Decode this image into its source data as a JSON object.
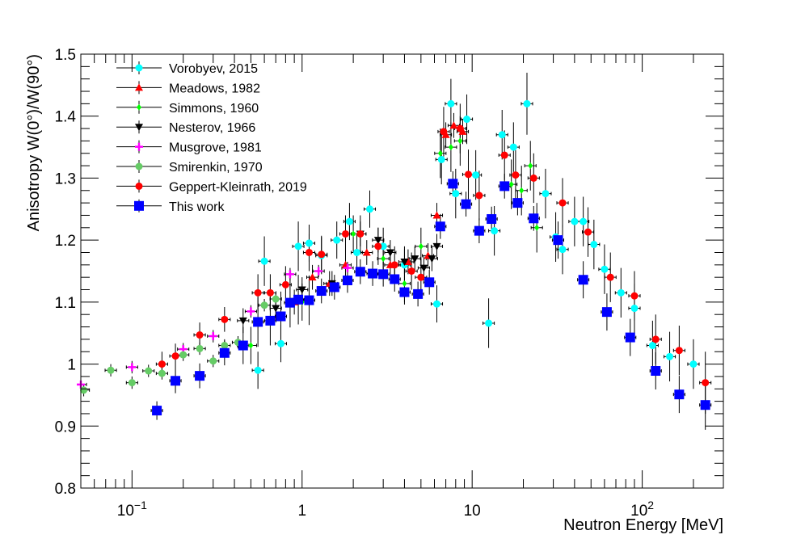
{
  "chart_data": {
    "type": "scatter",
    "title": "",
    "xlabel": "Neutron Energy [MeV]",
    "ylabel": "Anisotropy W(0°)/W(90°)",
    "xscale": "log",
    "xlim": [
      0.05,
      300
    ],
    "ylim": [
      0.8,
      1.5
    ],
    "grid": false,
    "legend_position": "top-left",
    "x_tick_labels": [
      {
        "value": 0.1,
        "base": "10",
        "exp": "−1"
      },
      {
        "value": 1,
        "base": "1",
        "exp": ""
      },
      {
        "value": 10,
        "base": "10",
        "exp": ""
      },
      {
        "value": 100,
        "base": "10",
        "exp": "2"
      }
    ],
    "y_ticks": [
      0.8,
      0.9,
      1.0,
      1.1,
      1.2,
      1.3,
      1.4,
      1.5
    ],
    "y_tick_labels": [
      "0.8",
      "0.9",
      "1",
      "1.1",
      "1.2",
      "1.3",
      "1.4",
      "1.5"
    ],
    "series": [
      {
        "name": "Vorobyev, 2015",
        "color": "#00ffff",
        "marker": "circle",
        "points": [
          {
            "x": 0.55,
            "y": 0.99,
            "err": 0.03
          },
          {
            "x": 0.6,
            "y": 1.166,
            "err": 0.04
          },
          {
            "x": 0.75,
            "y": 1.033,
            "err": 0.03
          },
          {
            "x": 0.95,
            "y": 1.19,
            "err": 0.04
          },
          {
            "x": 1.1,
            "y": 1.195,
            "err": 0.03
          },
          {
            "x": 1.3,
            "y": 1.175,
            "err": 0.03
          },
          {
            "x": 1.6,
            "y": 1.2,
            "err": 0.03
          },
          {
            "x": 1.9,
            "y": 1.23,
            "err": 0.03
          },
          {
            "x": 2.1,
            "y": 1.18,
            "err": 0.03
          },
          {
            "x": 2.5,
            "y": 1.25,
            "err": 0.03
          },
          {
            "x": 3.0,
            "y": 1.19,
            "err": 0.03
          },
          {
            "x": 4.0,
            "y": 1.16,
            "err": 0.03
          },
          {
            "x": 6.2,
            "y": 1.097,
            "err": 0.03
          },
          {
            "x": 6.6,
            "y": 1.33,
            "err": 0.04
          },
          {
            "x": 7.5,
            "y": 1.42,
            "err": 0.04
          },
          {
            "x": 8.0,
            "y": 1.275,
            "err": 0.04
          },
          {
            "x": 9.3,
            "y": 1.395,
            "err": 0.04
          },
          {
            "x": 10.5,
            "y": 1.305,
            "err": 0.04
          },
          {
            "x": 12.5,
            "y": 1.066,
            "err": 0.04
          },
          {
            "x": 13.5,
            "y": 1.215,
            "err": 0.04
          },
          {
            "x": 15.0,
            "y": 1.37,
            "err": 0.04
          },
          {
            "x": 17.5,
            "y": 1.35,
            "err": 0.04
          },
          {
            "x": 21.0,
            "y": 1.42,
            "err": 0.05
          },
          {
            "x": 27.0,
            "y": 1.275,
            "err": 0.04
          },
          {
            "x": 31.0,
            "y": 1.205,
            "err": 0.04
          },
          {
            "x": 34.0,
            "y": 1.185,
            "err": 0.04
          },
          {
            "x": 40.0,
            "y": 1.23,
            "err": 0.04
          },
          {
            "x": 45.0,
            "y": 1.23,
            "err": 0.04
          },
          {
            "x": 52.0,
            "y": 1.193,
            "err": 0.04
          },
          {
            "x": 60.0,
            "y": 1.153,
            "err": 0.04
          },
          {
            "x": 75.0,
            "y": 1.115,
            "err": 0.04
          },
          {
            "x": 90.0,
            "y": 1.09,
            "err": 0.04
          },
          {
            "x": 115.0,
            "y": 1.03,
            "err": 0.04
          },
          {
            "x": 145.0,
            "y": 1.012,
            "err": 0.04
          },
          {
            "x": 200.0,
            "y": 1.0,
            "err": 0.04
          }
        ]
      },
      {
        "name": "Meadows, 1982",
        "color": "#ff0000",
        "marker": "triangle-up",
        "points": [
          {
            "x": 0.9,
            "y": 1.1,
            "err": 0.02
          },
          {
            "x": 1.15,
            "y": 1.14,
            "err": 0.02
          },
          {
            "x": 1.45,
            "y": 1.13,
            "err": 0.02
          },
          {
            "x": 1.8,
            "y": 1.16,
            "err": 0.02
          },
          {
            "x": 2.4,
            "y": 1.18,
            "err": 0.02
          },
          {
            "x": 3.3,
            "y": 1.16,
            "err": 0.02
          },
          {
            "x": 4.2,
            "y": 1.165,
            "err": 0.02
          },
          {
            "x": 5.5,
            "y": 1.175,
            "err": 0.02
          },
          {
            "x": 6.2,
            "y": 1.24,
            "err": 0.02
          },
          {
            "x": 7.0,
            "y": 1.37,
            "err": 0.02
          },
          {
            "x": 7.8,
            "y": 1.385,
            "err": 0.02
          },
          {
            "x": 8.8,
            "y": 1.375,
            "err": 0.02
          }
        ]
      },
      {
        "name": "Simmons, 1960",
        "color": "#00ff00",
        "marker": "diamond",
        "points": [
          {
            "x": 0.5,
            "y": 1.03,
            "err": 0.03
          },
          {
            "x": 1.0,
            "y": 1.1,
            "err": 0.03
          },
          {
            "x": 2.0,
            "y": 1.21,
            "err": 0.03
          },
          {
            "x": 3.0,
            "y": 1.17,
            "err": 0.03
          },
          {
            "x": 4.0,
            "y": 1.13,
            "err": 0.03
          },
          {
            "x": 5.0,
            "y": 1.19,
            "err": 0.03
          },
          {
            "x": 6.5,
            "y": 1.34,
            "err": 0.04
          },
          {
            "x": 7.5,
            "y": 1.35,
            "err": 0.04
          },
          {
            "x": 8.5,
            "y": 1.36,
            "err": 0.04
          },
          {
            "x": 17.0,
            "y": 1.29,
            "err": 0.04
          },
          {
            "x": 19.5,
            "y": 1.28,
            "err": 0.04
          },
          {
            "x": 22.0,
            "y": 1.32,
            "err": 0.04
          },
          {
            "x": 24.0,
            "y": 1.22,
            "err": 0.04
          }
        ]
      },
      {
        "name": "Nesterov, 1966",
        "color": "#000000",
        "marker": "triangle-down",
        "points": [
          {
            "x": 0.45,
            "y": 1.07,
            "err": 0.02
          },
          {
            "x": 0.7,
            "y": 1.09,
            "err": 0.02
          },
          {
            "x": 1.0,
            "y": 1.12,
            "err": 0.02
          },
          {
            "x": 1.5,
            "y": 1.13,
            "err": 0.02
          },
          {
            "x": 2.2,
            "y": 1.21,
            "err": 0.02
          },
          {
            "x": 2.8,
            "y": 1.2,
            "err": 0.02
          },
          {
            "x": 3.3,
            "y": 1.18,
            "err": 0.02
          },
          {
            "x": 4.0,
            "y": 1.165,
            "err": 0.02
          },
          {
            "x": 4.6,
            "y": 1.17,
            "err": 0.02
          },
          {
            "x": 5.2,
            "y": 1.155,
            "err": 0.02
          },
          {
            "x": 5.8,
            "y": 1.17,
            "err": 0.02
          },
          {
            "x": 6.2,
            "y": 1.19,
            "err": 0.02
          }
        ]
      },
      {
        "name": "Musgrove, 1981",
        "color": "#ff00ff",
        "marker": "cross",
        "points": [
          {
            "x": 0.05,
            "y": 0.967,
            "err": 0.01
          },
          {
            "x": 0.1,
            "y": 0.995,
            "err": 0.01
          },
          {
            "x": 0.2,
            "y": 1.024,
            "err": 0.01
          },
          {
            "x": 0.3,
            "y": 1.045,
            "err": 0.01
          },
          {
            "x": 0.5,
            "y": 1.085,
            "err": 0.01
          },
          {
            "x": 0.85,
            "y": 1.145,
            "err": 0.01
          },
          {
            "x": 1.25,
            "y": 1.15,
            "err": 0.01
          },
          {
            "x": 1.85,
            "y": 1.155,
            "err": 0.01
          }
        ]
      },
      {
        "name": "Smirenkin, 1970",
        "color": "#66cc66",
        "marker": "circle",
        "points": [
          {
            "x": 0.052,
            "y": 0.958,
            "err": 0.01
          },
          {
            "x": 0.075,
            "y": 0.99,
            "err": 0.01
          },
          {
            "x": 0.1,
            "y": 0.97,
            "err": 0.01
          },
          {
            "x": 0.125,
            "y": 0.989,
            "err": 0.01
          },
          {
            "x": 0.15,
            "y": 0.985,
            "err": 0.01
          },
          {
            "x": 0.2,
            "y": 1.015,
            "err": 0.01
          },
          {
            "x": 0.25,
            "y": 1.025,
            "err": 0.01
          },
          {
            "x": 0.3,
            "y": 1.005,
            "err": 0.01
          },
          {
            "x": 0.35,
            "y": 1.03,
            "err": 0.01
          },
          {
            "x": 0.42,
            "y": 1.035,
            "err": 0.01
          },
          {
            "x": 0.6,
            "y": 1.095,
            "err": 0.01
          },
          {
            "x": 0.7,
            "y": 1.105,
            "err": 0.01
          }
        ]
      },
      {
        "name": "Geppert-Kleinrath, 2019",
        "color": "#ff0000",
        "marker": "circle",
        "points": [
          {
            "x": 0.15,
            "y": 1.0,
            "err": 0.02
          },
          {
            "x": 0.18,
            "y": 1.013,
            "err": 0.02
          },
          {
            "x": 0.25,
            "y": 1.047,
            "err": 0.02
          },
          {
            "x": 0.35,
            "y": 1.072,
            "err": 0.02
          },
          {
            "x": 0.55,
            "y": 1.115,
            "err": 0.03
          },
          {
            "x": 0.65,
            "y": 1.115,
            "err": 0.03
          },
          {
            "x": 0.8,
            "y": 1.128,
            "err": 0.03
          },
          {
            "x": 1.1,
            "y": 1.18,
            "err": 0.03
          },
          {
            "x": 1.3,
            "y": 1.177,
            "err": 0.03
          },
          {
            "x": 1.8,
            "y": 1.21,
            "err": 0.03
          },
          {
            "x": 2.2,
            "y": 1.21,
            "err": 0.03
          },
          {
            "x": 2.8,
            "y": 1.19,
            "err": 0.03
          },
          {
            "x": 3.5,
            "y": 1.16,
            "err": 0.03
          },
          {
            "x": 4.4,
            "y": 1.15,
            "err": 0.03
          },
          {
            "x": 5.0,
            "y": 1.14,
            "err": 0.03
          },
          {
            "x": 6.8,
            "y": 1.375,
            "err": 0.04
          },
          {
            "x": 8.5,
            "y": 1.38,
            "err": 0.04
          },
          {
            "x": 9.5,
            "y": 1.306,
            "err": 0.04
          },
          {
            "x": 11.0,
            "y": 1.272,
            "err": 0.04
          },
          {
            "x": 15.5,
            "y": 1.337,
            "err": 0.04
          },
          {
            "x": 18.0,
            "y": 1.305,
            "err": 0.04
          },
          {
            "x": 23.0,
            "y": 1.3,
            "err": 0.04
          },
          {
            "x": 34.0,
            "y": 1.26,
            "err": 0.04
          },
          {
            "x": 48.0,
            "y": 1.213,
            "err": 0.04
          },
          {
            "x": 65.0,
            "y": 1.14,
            "err": 0.04
          },
          {
            "x": 90.0,
            "y": 1.11,
            "err": 0.04
          },
          {
            "x": 120.0,
            "y": 1.04,
            "err": 0.04
          },
          {
            "x": 165.0,
            "y": 1.022,
            "err": 0.04
          },
          {
            "x": 235.0,
            "y": 0.97,
            "err": 0.05
          }
        ]
      },
      {
        "name": "This work",
        "color": "#0000ff",
        "marker": "square",
        "points": [
          {
            "x": 0.14,
            "y": 0.925,
            "err": 0.015
          },
          {
            "x": 0.18,
            "y": 0.973,
            "err": 0.02
          },
          {
            "x": 0.25,
            "y": 0.981,
            "err": 0.02
          },
          {
            "x": 0.35,
            "y": 1.018,
            "err": 0.02
          },
          {
            "x": 0.45,
            "y": 1.03,
            "err": 0.03
          },
          {
            "x": 0.55,
            "y": 1.068,
            "err": 0.04
          },
          {
            "x": 0.65,
            "y": 1.07,
            "err": 0.04
          },
          {
            "x": 0.75,
            "y": 1.077,
            "err": 0.04
          },
          {
            "x": 0.85,
            "y": 1.099,
            "err": 0.04
          },
          {
            "x": 0.95,
            "y": 1.104,
            "err": 0.04
          },
          {
            "x": 1.1,
            "y": 1.103,
            "err": 0.04
          },
          {
            "x": 1.3,
            "y": 1.118,
            "err": 0.02
          },
          {
            "x": 1.55,
            "y": 1.124,
            "err": 0.02
          },
          {
            "x": 1.85,
            "y": 1.135,
            "err": 0.02
          },
          {
            "x": 2.2,
            "y": 1.149,
            "err": 0.02
          },
          {
            "x": 2.6,
            "y": 1.146,
            "err": 0.02
          },
          {
            "x": 3.0,
            "y": 1.145,
            "err": 0.02
          },
          {
            "x": 3.5,
            "y": 1.137,
            "err": 0.02
          },
          {
            "x": 4.0,
            "y": 1.116,
            "err": 0.02
          },
          {
            "x": 4.8,
            "y": 1.113,
            "err": 0.02
          },
          {
            "x": 5.6,
            "y": 1.132,
            "err": 0.02
          },
          {
            "x": 6.5,
            "y": 1.222,
            "err": 0.02
          },
          {
            "x": 7.7,
            "y": 1.291,
            "err": 0.02
          },
          {
            "x": 9.2,
            "y": 1.258,
            "err": 0.02
          },
          {
            "x": 11.0,
            "y": 1.215,
            "err": 0.02
          },
          {
            "x": 13.0,
            "y": 1.234,
            "err": 0.02
          },
          {
            "x": 15.5,
            "y": 1.287,
            "err": 0.02
          },
          {
            "x": 18.5,
            "y": 1.26,
            "err": 0.02
          },
          {
            "x": 23.0,
            "y": 1.235,
            "err": 0.02
          },
          {
            "x": 32.0,
            "y": 1.2,
            "err": 0.03
          },
          {
            "x": 45.0,
            "y": 1.136,
            "err": 0.03
          },
          {
            "x": 62.0,
            "y": 1.084,
            "err": 0.03
          },
          {
            "x": 85.0,
            "y": 1.043,
            "err": 0.03
          },
          {
            "x": 120.0,
            "y": 0.989,
            "err": 0.03
          },
          {
            "x": 165.0,
            "y": 0.951,
            "err": 0.03
          },
          {
            "x": 235.0,
            "y": 0.934,
            "err": 0.04
          }
        ]
      }
    ]
  }
}
